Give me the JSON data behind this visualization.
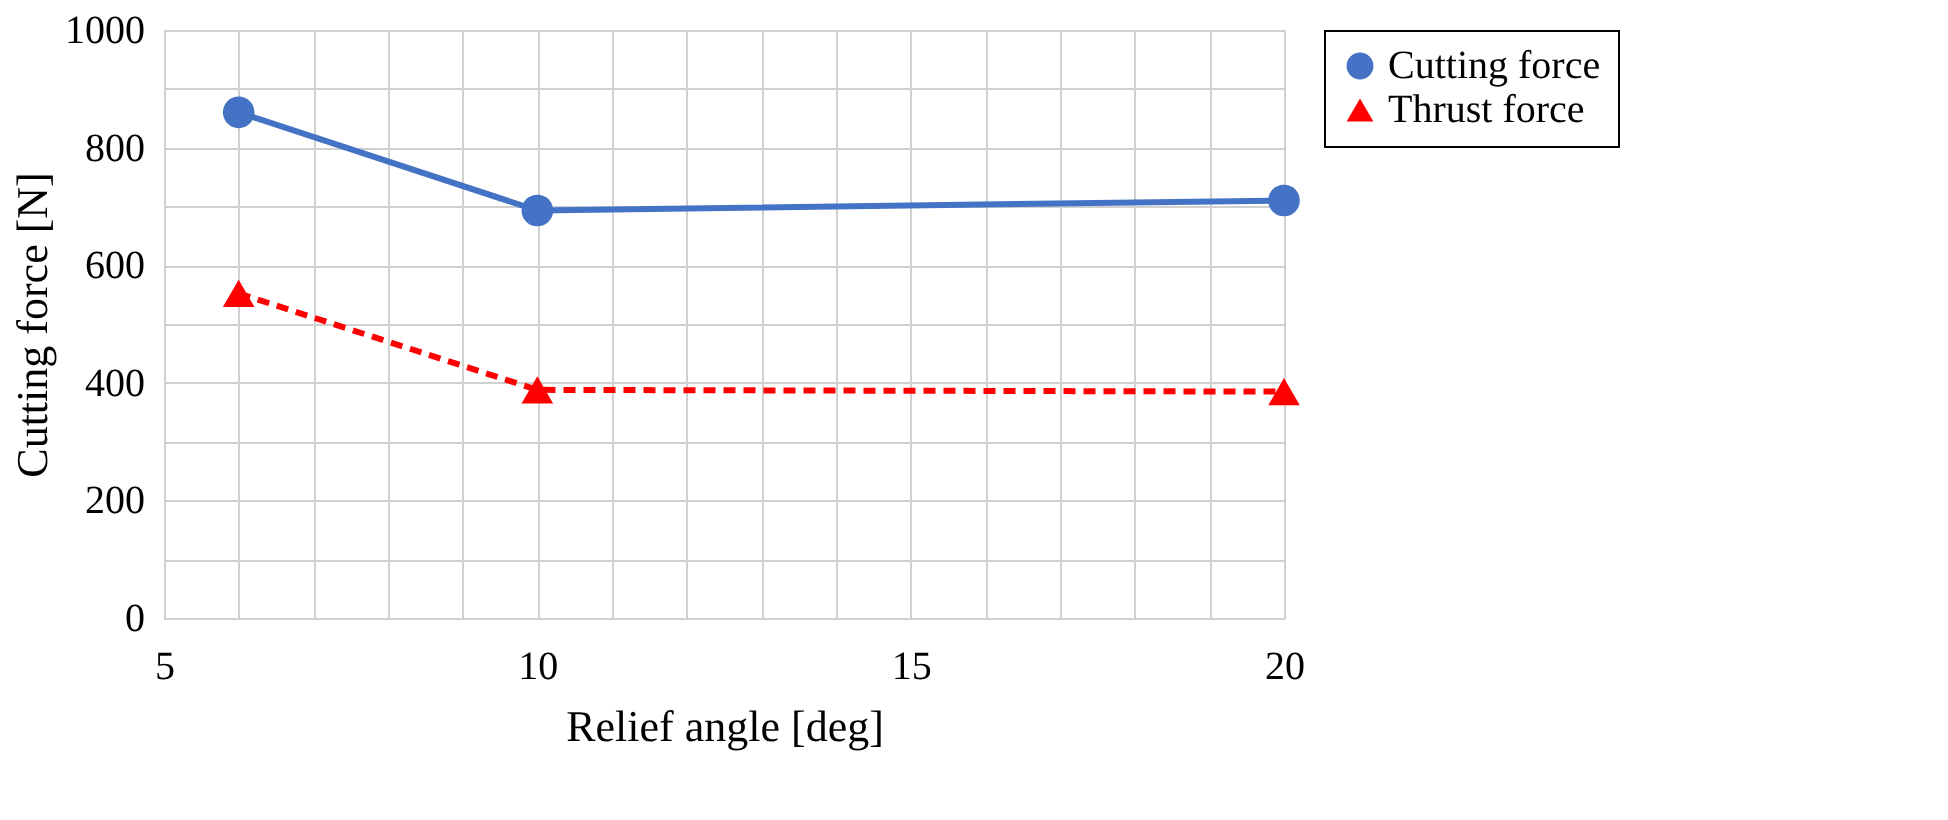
{
  "chart_data": {
    "type": "line",
    "xlabel": "Relief angle [deg]",
    "ylabel": "Cutting force [N]",
    "x": [
      6,
      10,
      20
    ],
    "series": [
      {
        "name": "Cutting force",
        "color": "#4472c4",
        "values": [
          860,
          693,
          710
        ],
        "marker": "circle",
        "line_style": "solid"
      },
      {
        "name": "Thrust force",
        "color": "#ff0000",
        "values": [
          552,
          388,
          385
        ],
        "marker": "triangle",
        "line_style": "dashed"
      }
    ],
    "xlim": [
      5,
      20
    ],
    "xticks": [
      5,
      {
        "value": 6,
        "label": null
      },
      {
        "value": 7,
        "label": null
      },
      {
        "value": 8,
        "label": null
      },
      {
        "value": 9,
        "label": null
      },
      10,
      {
        "value": 11,
        "label": null
      },
      {
        "value": 12,
        "label": null
      },
      {
        "value": 13,
        "label": null
      },
      {
        "value": 14,
        "label": null
      },
      15,
      {
        "value": 16,
        "label": null
      },
      {
        "value": 17,
        "label": null
      },
      {
        "value": 18,
        "label": null
      },
      {
        "value": 19,
        "label": null
      },
      20
    ],
    "ylim": [
      0,
      1000
    ],
    "yticks": [
      0,
      {
        "value": 100,
        "label": null
      },
      200,
      {
        "value": 300,
        "label": null
      },
      400,
      {
        "value": 500,
        "label": null
      },
      600,
      {
        "value": 700,
        "label": null
      },
      800,
      {
        "value": 900,
        "label": null
      },
      1000
    ],
    "grid": true,
    "legend": "right"
  }
}
